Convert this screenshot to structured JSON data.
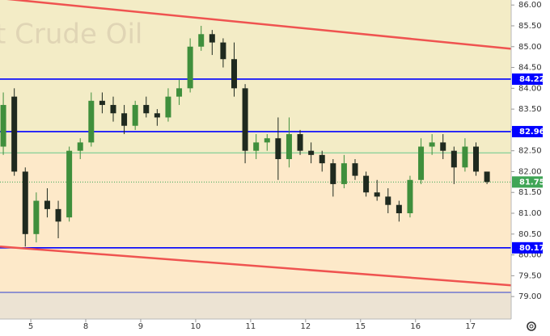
{
  "chart_data": {
    "type": "candlestick",
    "watermark": "t Crude Oil",
    "xlim": [
      -0.56,
      8.74
    ],
    "xticks": [
      {
        "value": 0,
        "label": "5"
      },
      {
        "value": 1,
        "label": "8"
      },
      {
        "value": 2,
        "label": "9"
      },
      {
        "value": 3,
        "label": "10"
      },
      {
        "value": 4,
        "label": "11"
      },
      {
        "value": 5,
        "label": "12"
      },
      {
        "value": 6,
        "label": "15"
      },
      {
        "value": 7,
        "label": "16"
      },
      {
        "value": 8,
        "label": "17"
      }
    ],
    "ylim": [
      78.46,
      86.12
    ],
    "yticks": [
      {
        "value": 79,
        "label": "79.00"
      },
      {
        "value": 79.5,
        "label": "79.50"
      },
      {
        "value": 80,
        "label": "80.00"
      },
      {
        "value": 80.5,
        "label": "80.50"
      },
      {
        "value": 81,
        "label": "81.00"
      },
      {
        "value": 81.5,
        "label": "81.50"
      },
      {
        "value": 82,
        "label": "82.00"
      },
      {
        "value": 82.5,
        "label": "82.50"
      },
      {
        "value": 83,
        "label": "83.00"
      },
      {
        "value": 83.5,
        "label": "83.50"
      },
      {
        "value": 84,
        "label": "84.00"
      },
      {
        "value": 84.5,
        "label": "84.50"
      },
      {
        "value": 85,
        "label": "85.00"
      },
      {
        "value": 85.5,
        "label": "85.50"
      },
      {
        "value": 86,
        "label": "86.00"
      }
    ],
    "up_color": "#3f8f3c",
    "down_color": "#1f2a1f",
    "candles": {
      "x": [
        -0.5,
        -0.3,
        -0.1,
        0.1,
        0.3,
        0.5,
        0.7,
        0.9,
        1.1,
        1.3,
        1.5,
        1.7,
        1.9,
        2.1,
        2.3,
        2.5,
        2.7,
        2.9,
        3.1,
        3.3,
        3.5,
        3.7,
        3.9,
        4.1,
        4.3,
        4.5,
        4.7,
        4.9,
        5.1,
        5.3,
        5.5,
        5.7,
        5.9,
        6.1,
        6.3,
        6.5,
        6.7,
        6.9,
        7.1,
        7.3,
        7.5,
        7.7,
        7.9,
        8.1,
        8.3
      ],
      "open": [
        82.6,
        83.8,
        82.0,
        80.5,
        81.3,
        81.1,
        80.9,
        82.5,
        82.7,
        83.7,
        83.6,
        83.4,
        83.1,
        83.6,
        83.4,
        83.3,
        83.8,
        84.0,
        85.0,
        85.3,
        85.1,
        84.7,
        84.0,
        82.5,
        82.7,
        82.8,
        82.3,
        82.9,
        82.5,
        82.4,
        82.2,
        81.7,
        82.2,
        81.9,
        81.5,
        81.4,
        81.2,
        81.0,
        81.8,
        82.6,
        82.7,
        82.5,
        82.1,
        82.6,
        82.0
      ],
      "high": [
        83.9,
        84.0,
        82.1,
        81.5,
        81.6,
        81.3,
        82.6,
        82.8,
        83.9,
        83.9,
        83.8,
        83.6,
        83.7,
        83.8,
        83.5,
        84.0,
        84.2,
        85.2,
        85.5,
        85.4,
        85.2,
        85.1,
        84.1,
        82.9,
        82.9,
        83.3,
        83.3,
        83.0,
        82.7,
        82.5,
        82.3,
        82.4,
        82.3,
        82.0,
        81.8,
        81.6,
        81.3,
        81.9,
        82.8,
        82.9,
        82.9,
        82.6,
        82.8,
        82.7,
        82.0
      ],
      "low": [
        82.4,
        81.9,
        80.2,
        80.3,
        80.9,
        80.4,
        80.8,
        82.3,
        82.6,
        83.4,
        83.2,
        82.9,
        83.0,
        83.3,
        83.1,
        83.2,
        83.6,
        83.9,
        84.9,
        84.8,
        84.5,
        83.8,
        82.2,
        82.3,
        82.5,
        81.8,
        82.1,
        82.4,
        82.2,
        82.0,
        81.4,
        81.6,
        81.8,
        81.4,
        81.3,
        81.0,
        80.8,
        80.9,
        81.7,
        82.4,
        82.3,
        81.7,
        82.0,
        81.9,
        81.7
      ],
      "close": [
        83.6,
        82.0,
        80.5,
        81.3,
        81.1,
        80.8,
        82.5,
        82.7,
        83.7,
        83.6,
        83.4,
        83.1,
        83.6,
        83.4,
        83.3,
        83.8,
        84.0,
        85.0,
        85.3,
        85.1,
        84.7,
        84.0,
        82.5,
        82.7,
        82.8,
        82.3,
        82.9,
        82.5,
        82.4,
        82.2,
        81.7,
        82.2,
        81.9,
        81.5,
        81.4,
        81.2,
        81.0,
        81.8,
        82.6,
        82.7,
        82.5,
        82.1,
        82.6,
        82.0,
        81.75
      ]
    },
    "trendlines": [
      {
        "x": [
          -0.56,
          8.74
        ],
        "y": [
          86.16,
          84.95
        ],
        "color": "#ef5350"
      },
      {
        "x": [
          -0.56,
          8.74
        ],
        "y": [
          80.2,
          79.27
        ],
        "color": "#ef5350"
      }
    ],
    "levels": [
      {
        "value": 84.22,
        "color": "#0000ff",
        "flag": true
      },
      {
        "value": 82.96,
        "color": "#0000ff",
        "flag": true
      },
      {
        "value": 80.17,
        "color": "#0000ff",
        "flag": true
      },
      {
        "value": 82.45,
        "color": "#66c78a",
        "flag": false
      },
      {
        "value": 79.1,
        "color": "#2a3fd0",
        "flag": false
      }
    ],
    "price": {
      "value": 81.75,
      "color": "#3fa556"
    }
  }
}
